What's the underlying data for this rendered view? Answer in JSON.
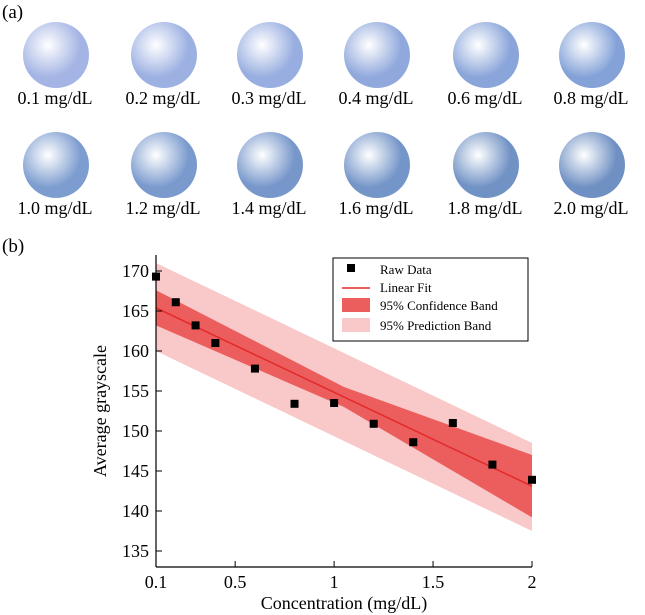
{
  "panels": {
    "a": "(a)",
    "b": "(b)"
  },
  "samples": [
    {
      "label": "0.1 mg/dL",
      "color": "#a4b4e4"
    },
    {
      "label": "0.2 mg/dL",
      "color": "#9cb0e2"
    },
    {
      "label": "0.3 mg/dL",
      "color": "#98aee0"
    },
    {
      "label": "0.4 mg/dL",
      "color": "#90a8dc"
    },
    {
      "label": "0.6 mg/dL",
      "color": "#8aa5da"
    },
    {
      "label": "0.8 mg/dL",
      "color": "#84a2d8"
    },
    {
      "label": "1.0 mg/dL",
      "color": "#7d9dd0"
    },
    {
      "label": "1.2 mg/dL",
      "color": "#7a9ace"
    },
    {
      "label": "1.4 mg/dL",
      "color": "#7797cb"
    },
    {
      "label": "1.6 mg/dL",
      "color": "#7495c8"
    },
    {
      "label": "1.8 mg/dL",
      "color": "#7192c5"
    },
    {
      "label": "2.0 mg/dL",
      "color": "#6f90c3"
    }
  ],
  "chart_data": {
    "type": "scatter",
    "xlabel": "Concentration (mg/dL)",
    "ylabel": "Average grayscale",
    "xlim": [
      0.1,
      2.0
    ],
    "ylim": [
      133,
      172
    ],
    "x_ticks": [
      0.1,
      0.5,
      1.0,
      1.5,
      2.0
    ],
    "x_tick_labels": [
      "0.1",
      "0.5",
      "1",
      "1.5",
      "2"
    ],
    "y_ticks": [
      135,
      140,
      145,
      150,
      155,
      160,
      165,
      170
    ],
    "y_tick_labels": [
      "135",
      "140",
      "145",
      "150",
      "155",
      "160",
      "165",
      "170"
    ],
    "legend_position": "top-right",
    "colors": {
      "points": "#000000",
      "fit": "#e32929",
      "confidence": "#ec5d5d",
      "prediction": "#f9c8c8"
    },
    "series": [
      {
        "name": "Raw Data",
        "x": [
          0.1,
          0.2,
          0.3,
          0.4,
          0.6,
          0.8,
          1.0,
          1.2,
          1.4,
          1.6,
          1.8,
          2.0
        ],
        "y": [
          169.3,
          166.1,
          163.2,
          161.0,
          157.8,
          153.4,
          153.5,
          150.9,
          148.6,
          151.0,
          145.8,
          143.9
        ]
      }
    ],
    "fit": {
      "name": "Linear Fit",
      "x": [
        0.1,
        2.0
      ],
      "y": [
        165.4,
        143.1
      ]
    },
    "confidence_band": {
      "name": "95% Confidence Band",
      "x": [
        0.1,
        1.05,
        2.0
      ],
      "upper": [
        167.6,
        155.5,
        147.0
      ],
      "lower": [
        163.2,
        153.0,
        139.2
      ]
    },
    "prediction_band": {
      "name": "95% Prediction Band",
      "x": [
        0.1,
        2.0
      ],
      "upper": [
        171.0,
        148.5
      ],
      "lower": [
        160.0,
        137.5
      ]
    }
  }
}
